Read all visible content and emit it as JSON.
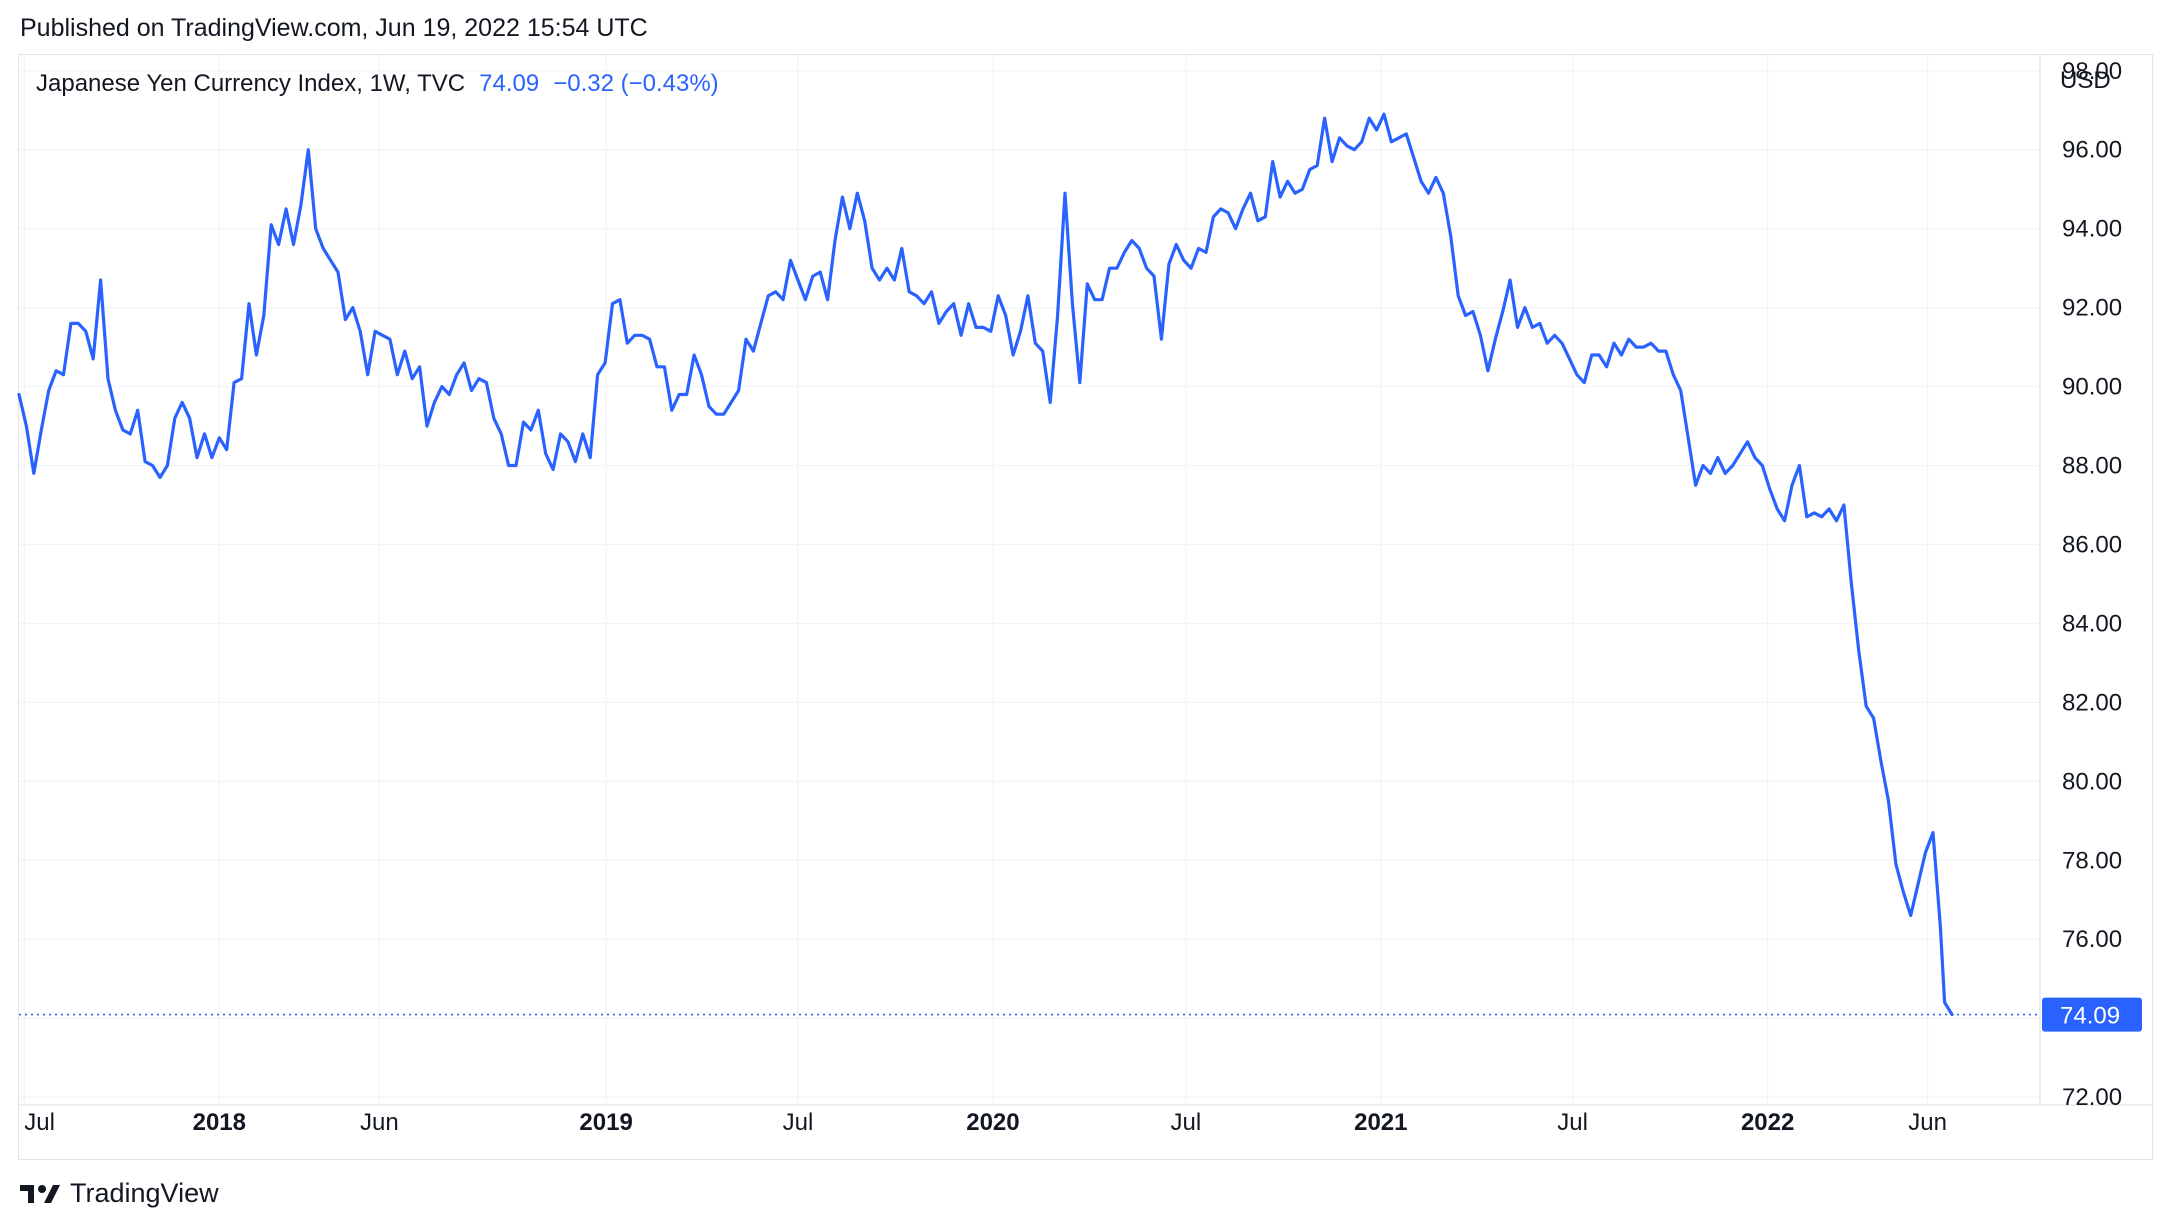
{
  "header": {
    "published": "Published on TradingView.com, Jun 19, 2022 15:54 UTC"
  },
  "legend": {
    "symbol": "Japanese Yen Currency Index, 1W, TVC",
    "last_value": "74.09",
    "change": "−0.32 (−0.43%)"
  },
  "currency": "USD",
  "footer": {
    "brand": "TradingView"
  },
  "colors": {
    "line": "#2962ff",
    "grid": "#f0f3fa",
    "axis_text": "#131722",
    "label_bg": "#2962ff"
  },
  "chart_data": {
    "type": "line",
    "title": "Japanese Yen Currency Index, 1W, TVC",
    "ylabel": "USD",
    "ylim": [
      71.8,
      98.4
    ],
    "xlim": [
      "2017-06-26",
      "2022-09-15"
    ],
    "y_ticks": [
      "98.00",
      "96.00",
      "94.00",
      "92.00",
      "90.00",
      "88.00",
      "86.00",
      "84.00",
      "82.00",
      "80.00",
      "78.00",
      "76.00",
      "74.00",
      "72.00"
    ],
    "x_ticks": [
      {
        "label": "Jul",
        "date": "2017-07-01",
        "bold": false
      },
      {
        "label": "2018",
        "date": "2018-01-01",
        "bold": true
      },
      {
        "label": "Jun",
        "date": "2018-06-01",
        "bold": false
      },
      {
        "label": "2019",
        "date": "2019-01-01",
        "bold": true
      },
      {
        "label": "Jul",
        "date": "2019-07-01",
        "bold": false
      },
      {
        "label": "2020",
        "date": "2020-01-01",
        "bold": true
      },
      {
        "label": "Jul",
        "date": "2020-07-01",
        "bold": false
      },
      {
        "label": "2021",
        "date": "2021-01-01",
        "bold": true
      },
      {
        "label": "Jul",
        "date": "2021-07-01",
        "bold": false
      },
      {
        "label": "2022",
        "date": "2022-01-01",
        "bold": true
      },
      {
        "label": "Jun",
        "date": "2022-06-01",
        "bold": false
      }
    ],
    "last_price_label": "74.09",
    "grid": true,
    "series": [
      {
        "points": [
          [
            "2017-06-26",
            89.8
          ],
          [
            "2017-07-03",
            89.0
          ],
          [
            "2017-07-10",
            87.8
          ],
          [
            "2017-07-17",
            88.9
          ],
          [
            "2017-07-24",
            89.9
          ],
          [
            "2017-07-31",
            90.4
          ],
          [
            "2017-08-07",
            90.3
          ],
          [
            "2017-08-14",
            91.6
          ],
          [
            "2017-08-21",
            91.6
          ],
          [
            "2017-08-28",
            91.4
          ],
          [
            "2017-09-04",
            90.7
          ],
          [
            "2017-09-11",
            92.7
          ],
          [
            "2017-09-18",
            90.2
          ],
          [
            "2017-09-25",
            89.4
          ],
          [
            "2017-10-02",
            88.9
          ],
          [
            "2017-10-09",
            88.8
          ],
          [
            "2017-10-16",
            89.4
          ],
          [
            "2017-10-23",
            88.1
          ],
          [
            "2017-10-30",
            88.0
          ],
          [
            "2017-11-06",
            87.7
          ],
          [
            "2017-11-13",
            88.0
          ],
          [
            "2017-11-20",
            89.2
          ],
          [
            "2017-11-27",
            89.6
          ],
          [
            "2017-12-04",
            89.2
          ],
          [
            "2017-12-11",
            88.2
          ],
          [
            "2017-12-18",
            88.8
          ],
          [
            "2017-12-25",
            88.2
          ],
          [
            "2018-01-01",
            88.7
          ],
          [
            "2018-01-08",
            88.4
          ],
          [
            "2018-01-15",
            90.1
          ],
          [
            "2018-01-22",
            90.2
          ],
          [
            "2018-01-29",
            92.1
          ],
          [
            "2018-02-05",
            90.8
          ],
          [
            "2018-02-12",
            91.8
          ],
          [
            "2018-02-19",
            94.1
          ],
          [
            "2018-02-26",
            93.6
          ],
          [
            "2018-03-05",
            94.5
          ],
          [
            "2018-03-12",
            93.6
          ],
          [
            "2018-03-19",
            94.6
          ],
          [
            "2018-03-26",
            96.0
          ],
          [
            "2018-04-02",
            94.0
          ],
          [
            "2018-04-09",
            93.5
          ],
          [
            "2018-04-16",
            93.2
          ],
          [
            "2018-04-23",
            92.9
          ],
          [
            "2018-04-30",
            91.7
          ],
          [
            "2018-05-07",
            92.0
          ],
          [
            "2018-05-14",
            91.4
          ],
          [
            "2018-05-21",
            90.3
          ],
          [
            "2018-05-28",
            91.4
          ],
          [
            "2018-06-04",
            91.3
          ],
          [
            "2018-06-11",
            91.2
          ],
          [
            "2018-06-18",
            90.3
          ],
          [
            "2018-06-25",
            90.9
          ],
          [
            "2018-07-02",
            90.2
          ],
          [
            "2018-07-09",
            90.5
          ],
          [
            "2018-07-16",
            89.0
          ],
          [
            "2018-07-23",
            89.6
          ],
          [
            "2018-07-30",
            90.0
          ],
          [
            "2018-08-06",
            89.8
          ],
          [
            "2018-08-13",
            90.3
          ],
          [
            "2018-08-20",
            90.6
          ],
          [
            "2018-08-27",
            89.9
          ],
          [
            "2018-09-03",
            90.2
          ],
          [
            "2018-09-10",
            90.1
          ],
          [
            "2018-09-17",
            89.2
          ],
          [
            "2018-09-24",
            88.8
          ],
          [
            "2018-10-01",
            88.0
          ],
          [
            "2018-10-08",
            88.0
          ],
          [
            "2018-10-15",
            89.1
          ],
          [
            "2018-10-22",
            88.9
          ],
          [
            "2018-10-29",
            89.4
          ],
          [
            "2018-11-05",
            88.3
          ],
          [
            "2018-11-12",
            87.9
          ],
          [
            "2018-11-19",
            88.8
          ],
          [
            "2018-11-26",
            88.6
          ],
          [
            "2018-12-03",
            88.1
          ],
          [
            "2018-12-10",
            88.8
          ],
          [
            "2018-12-17",
            88.2
          ],
          [
            "2018-12-24",
            90.3
          ],
          [
            "2018-12-31",
            90.6
          ],
          [
            "2019-01-07",
            92.1
          ],
          [
            "2019-01-14",
            92.2
          ],
          [
            "2019-01-21",
            91.1
          ],
          [
            "2019-01-28",
            91.3
          ],
          [
            "2019-02-04",
            91.3
          ],
          [
            "2019-02-11",
            91.2
          ],
          [
            "2019-02-18",
            90.5
          ],
          [
            "2019-02-25",
            90.5
          ],
          [
            "2019-03-04",
            89.4
          ],
          [
            "2019-03-11",
            89.8
          ],
          [
            "2019-03-18",
            89.8
          ],
          [
            "2019-03-25",
            90.8
          ],
          [
            "2019-04-01",
            90.3
          ],
          [
            "2019-04-08",
            89.5
          ],
          [
            "2019-04-15",
            89.3
          ],
          [
            "2019-04-22",
            89.3
          ],
          [
            "2019-04-29",
            89.6
          ],
          [
            "2019-05-06",
            89.9
          ],
          [
            "2019-05-13",
            91.2
          ],
          [
            "2019-05-20",
            90.9
          ],
          [
            "2019-05-27",
            91.6
          ],
          [
            "2019-06-03",
            92.3
          ],
          [
            "2019-06-10",
            92.4
          ],
          [
            "2019-06-17",
            92.2
          ],
          [
            "2019-06-24",
            93.2
          ],
          [
            "2019-07-01",
            92.7
          ],
          [
            "2019-07-08",
            92.2
          ],
          [
            "2019-07-15",
            92.8
          ],
          [
            "2019-07-22",
            92.9
          ],
          [
            "2019-07-29",
            92.2
          ],
          [
            "2019-08-05",
            93.7
          ],
          [
            "2019-08-12",
            94.8
          ],
          [
            "2019-08-19",
            94.0
          ],
          [
            "2019-08-26",
            94.9
          ],
          [
            "2019-09-02",
            94.2
          ],
          [
            "2019-09-09",
            93.0
          ],
          [
            "2019-09-16",
            92.7
          ],
          [
            "2019-09-23",
            93.0
          ],
          [
            "2019-09-30",
            92.7
          ],
          [
            "2019-10-07",
            93.5
          ],
          [
            "2019-10-14",
            92.4
          ],
          [
            "2019-10-21",
            92.3
          ],
          [
            "2019-10-28",
            92.1
          ],
          [
            "2019-11-04",
            92.4
          ],
          [
            "2019-11-11",
            91.6
          ],
          [
            "2019-11-18",
            91.9
          ],
          [
            "2019-11-25",
            92.1
          ],
          [
            "2019-12-02",
            91.3
          ],
          [
            "2019-12-09",
            92.1
          ],
          [
            "2019-12-16",
            91.5
          ],
          [
            "2019-12-23",
            91.5
          ],
          [
            "2019-12-30",
            91.4
          ],
          [
            "2020-01-06",
            92.3
          ],
          [
            "2020-01-13",
            91.8
          ],
          [
            "2020-01-20",
            90.8
          ],
          [
            "2020-01-27",
            91.4
          ],
          [
            "2020-02-03",
            92.3
          ],
          [
            "2020-02-10",
            91.1
          ],
          [
            "2020-02-17",
            90.9
          ],
          [
            "2020-02-24",
            89.6
          ],
          [
            "2020-03-02",
            91.8
          ],
          [
            "2020-03-09",
            94.9
          ],
          [
            "2020-03-16",
            92.1
          ],
          [
            "2020-03-23",
            90.1
          ],
          [
            "2020-03-30",
            92.6
          ],
          [
            "2020-04-06",
            92.2
          ],
          [
            "2020-04-13",
            92.2
          ],
          [
            "2020-04-20",
            93.0
          ],
          [
            "2020-04-27",
            93.0
          ],
          [
            "2020-05-04",
            93.4
          ],
          [
            "2020-05-11",
            93.7
          ],
          [
            "2020-05-18",
            93.5
          ],
          [
            "2020-05-25",
            93.0
          ],
          [
            "2020-06-01",
            92.8
          ],
          [
            "2020-06-08",
            91.2
          ],
          [
            "2020-06-15",
            93.1
          ],
          [
            "2020-06-22",
            93.6
          ],
          [
            "2020-06-29",
            93.2
          ],
          [
            "2020-07-06",
            93.0
          ],
          [
            "2020-07-13",
            93.5
          ],
          [
            "2020-07-20",
            93.4
          ],
          [
            "2020-07-27",
            94.3
          ],
          [
            "2020-08-03",
            94.5
          ],
          [
            "2020-08-10",
            94.4
          ],
          [
            "2020-08-17",
            94.0
          ],
          [
            "2020-08-24",
            94.5
          ],
          [
            "2020-08-31",
            94.9
          ],
          [
            "2020-09-07",
            94.2
          ],
          [
            "2020-09-14",
            94.3
          ],
          [
            "2020-09-21",
            95.7
          ],
          [
            "2020-09-28",
            94.8
          ],
          [
            "2020-10-05",
            95.2
          ],
          [
            "2020-10-12",
            94.9
          ],
          [
            "2020-10-19",
            95.0
          ],
          [
            "2020-10-26",
            95.5
          ],
          [
            "2020-11-02",
            95.6
          ],
          [
            "2020-11-09",
            96.8
          ],
          [
            "2020-11-16",
            95.7
          ],
          [
            "2020-11-23",
            96.3
          ],
          [
            "2020-11-30",
            96.1
          ],
          [
            "2020-12-07",
            96.0
          ],
          [
            "2020-12-14",
            96.2
          ],
          [
            "2020-12-21",
            96.8
          ],
          [
            "2020-12-28",
            96.5
          ],
          [
            "2021-01-04",
            96.9
          ],
          [
            "2021-01-11",
            96.2
          ],
          [
            "2021-01-18",
            96.3
          ],
          [
            "2021-01-25",
            96.4
          ],
          [
            "2021-02-01",
            95.8
          ],
          [
            "2021-02-08",
            95.2
          ],
          [
            "2021-02-15",
            94.9
          ],
          [
            "2021-02-22",
            95.3
          ],
          [
            "2021-03-01",
            94.9
          ],
          [
            "2021-03-08",
            93.8
          ],
          [
            "2021-03-15",
            92.3
          ],
          [
            "2021-03-22",
            91.8
          ],
          [
            "2021-03-29",
            91.9
          ],
          [
            "2021-04-05",
            91.3
          ],
          [
            "2021-04-12",
            90.4
          ],
          [
            "2021-04-19",
            91.2
          ],
          [
            "2021-04-26",
            91.9
          ],
          [
            "2021-05-03",
            92.7
          ],
          [
            "2021-05-10",
            91.5
          ],
          [
            "2021-05-17",
            92.0
          ],
          [
            "2021-05-24",
            91.5
          ],
          [
            "2021-05-31",
            91.6
          ],
          [
            "2021-06-07",
            91.1
          ],
          [
            "2021-06-14",
            91.3
          ],
          [
            "2021-06-21",
            91.1
          ],
          [
            "2021-06-28",
            90.7
          ],
          [
            "2021-07-05",
            90.3
          ],
          [
            "2021-07-12",
            90.1
          ],
          [
            "2021-07-19",
            90.8
          ],
          [
            "2021-07-26",
            90.8
          ],
          [
            "2021-08-02",
            90.5
          ],
          [
            "2021-08-09",
            91.1
          ],
          [
            "2021-08-16",
            90.8
          ],
          [
            "2021-08-23",
            91.2
          ],
          [
            "2021-08-30",
            91.0
          ],
          [
            "2021-09-06",
            91.0
          ],
          [
            "2021-09-13",
            91.1
          ],
          [
            "2021-09-20",
            90.9
          ],
          [
            "2021-09-27",
            90.9
          ],
          [
            "2021-10-04",
            90.3
          ],
          [
            "2021-10-11",
            89.9
          ],
          [
            "2021-10-18",
            88.7
          ],
          [
            "2021-10-25",
            87.5
          ],
          [
            "2021-11-01",
            88.0
          ],
          [
            "2021-11-08",
            87.8
          ],
          [
            "2021-11-15",
            88.2
          ],
          [
            "2021-11-22",
            87.8
          ],
          [
            "2021-11-29",
            88.0
          ],
          [
            "2021-12-06",
            88.3
          ],
          [
            "2021-12-13",
            88.6
          ],
          [
            "2021-12-20",
            88.2
          ],
          [
            "2021-12-27",
            88.0
          ],
          [
            "2022-01-03",
            87.4
          ],
          [
            "2022-01-10",
            86.9
          ],
          [
            "2022-01-17",
            86.6
          ],
          [
            "2022-01-24",
            87.5
          ],
          [
            "2022-01-31",
            88.0
          ],
          [
            "2022-02-07",
            86.7
          ],
          [
            "2022-02-14",
            86.8
          ],
          [
            "2022-02-21",
            86.7
          ],
          [
            "2022-02-28",
            86.9
          ],
          [
            "2022-03-07",
            86.6
          ],
          [
            "2022-03-14",
            87.0
          ],
          [
            "2022-03-21",
            85.0
          ],
          [
            "2022-03-28",
            83.3
          ],
          [
            "2022-04-04",
            81.9
          ],
          [
            "2022-04-11",
            81.6
          ],
          [
            "2022-04-18",
            80.5
          ],
          [
            "2022-04-25",
            79.5
          ],
          [
            "2022-05-02",
            77.9
          ],
          [
            "2022-05-09",
            77.2
          ],
          [
            "2022-05-16",
            76.6
          ],
          [
            "2022-05-23",
            77.4
          ],
          [
            "2022-05-30",
            78.2
          ],
          [
            "2022-06-06",
            78.7
          ],
          [
            "2022-06-13",
            76.3
          ],
          [
            "2022-06-17",
            74.4
          ],
          [
            "2022-06-24",
            74.09
          ]
        ]
      }
    ]
  }
}
